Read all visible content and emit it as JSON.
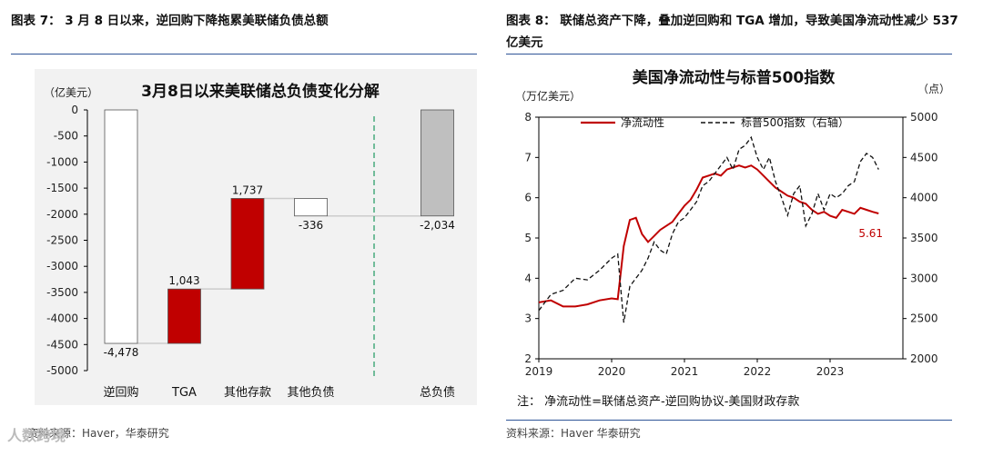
{
  "captions": {
    "left": "图表 7：  3 月 8 日以来，逆回购下降拖累美联储负债总额",
    "right": "图表 8：  联储总资产下降，叠加逆回购和 TGA 增加，导致美国净流动性减少 537 亿美元"
  },
  "sources": {
    "left": "资料来源：Haver，华泰研究",
    "right": "资料来源：Haver 华泰研究"
  },
  "watermark": "人数跨境",
  "colors": {
    "accent_red": "#c00000",
    "gray_bar": "#bfbfbf",
    "dashed_green": "#2e9e6a",
    "rule_blue": "#2f5597"
  },
  "chart_data": [
    {
      "type": "bar",
      "subtype": "waterfall",
      "title": "3月8日以来美联储总负债变化分解",
      "ylabel": "（亿美元）",
      "ylim": [
        -5000,
        0
      ],
      "yticks": [
        0,
        -500,
        -1000,
        -1500,
        -2000,
        -2500,
        -3000,
        -3500,
        -4000,
        -4500,
        -5000
      ],
      "categories": [
        "逆回购",
        "TGA",
        "其他存款",
        "其他负债",
        "总负债"
      ],
      "values": [
        -4478,
        1043,
        1737,
        -336,
        -2034
      ],
      "data_labels": [
        "-4,478",
        "1,043",
        "1,737",
        "-336",
        "-2,034"
      ],
      "bar_fills": [
        "#ffffff",
        "#c00000",
        "#c00000",
        "#ffffff",
        "#bfbfbf"
      ],
      "divider_after_category": "其他负债",
      "grid": false
    },
    {
      "type": "line",
      "title": "美国净流动性与标普500指数",
      "ylabel_left": "（万亿美元）",
      "ylabel_right": "（点）",
      "ylim": [
        2,
        8
      ],
      "ylim_right": [
        2000,
        5000
      ],
      "yticks": [
        2,
        3,
        4,
        5,
        6,
        7,
        8
      ],
      "yticks_right": [
        2000,
        2500,
        3000,
        3500,
        4000,
        4500,
        5000
      ],
      "xlim": [
        "2019-01",
        "2023-12"
      ],
      "xticks": [
        "2019",
        "2020",
        "2021",
        "2022",
        "2023"
      ],
      "legend_position": "top",
      "end_label": "5.61",
      "note": "注：  净流动性=联储总资产-逆回购协议-美国财政存款",
      "series": [
        {
          "name": "净流动性",
          "axis": "left",
          "color": "#c00000",
          "style": "solid",
          "x": [
            "2019-01",
            "2019-03",
            "2019-05",
            "2019-07",
            "2019-09",
            "2019-11",
            "2020-01",
            "2020-02",
            "2020-03",
            "2020-04",
            "2020-05",
            "2020-06",
            "2020-07",
            "2020-08",
            "2020-09",
            "2020-10",
            "2020-11",
            "2020-12",
            "2021-01",
            "2021-02",
            "2021-03",
            "2021-04",
            "2021-05",
            "2021-06",
            "2021-07",
            "2021-08",
            "2021-09",
            "2021-10",
            "2021-11",
            "2021-12",
            "2022-01",
            "2022-02",
            "2022-03",
            "2022-04",
            "2022-05",
            "2022-06",
            "2022-07",
            "2022-08",
            "2022-09",
            "2022-10",
            "2022-11",
            "2022-12",
            "2023-01",
            "2023-02",
            "2023-03",
            "2023-04",
            "2023-05",
            "2023-06",
            "2023-07",
            "2023-08",
            "2023-09"
          ],
          "y": [
            3.4,
            3.45,
            3.3,
            3.3,
            3.35,
            3.45,
            3.5,
            3.48,
            4.8,
            5.45,
            5.5,
            5.1,
            4.9,
            5.05,
            5.2,
            5.3,
            5.4,
            5.6,
            5.8,
            5.95,
            6.2,
            6.5,
            6.55,
            6.6,
            6.55,
            6.7,
            6.75,
            6.8,
            6.75,
            6.8,
            6.7,
            6.55,
            6.4,
            6.25,
            6.15,
            6.05,
            6.0,
            5.9,
            5.85,
            5.7,
            5.6,
            5.65,
            5.55,
            5.5,
            5.7,
            5.65,
            5.6,
            5.75,
            5.7,
            5.65,
            5.61
          ]
        },
        {
          "name": "标普500指数（右轴）",
          "axis": "right",
          "color": "#111111",
          "style": "dashed",
          "x": [
            "2019-01",
            "2019-03",
            "2019-05",
            "2019-07",
            "2019-09",
            "2019-11",
            "2020-01",
            "2020-02",
            "2020-03",
            "2020-04",
            "2020-05",
            "2020-06",
            "2020-07",
            "2020-08",
            "2020-09",
            "2020-10",
            "2020-11",
            "2020-12",
            "2021-01",
            "2021-02",
            "2021-03",
            "2021-04",
            "2021-05",
            "2021-06",
            "2021-07",
            "2021-08",
            "2021-09",
            "2021-10",
            "2021-11",
            "2021-12",
            "2022-01",
            "2022-02",
            "2022-03",
            "2022-04",
            "2022-05",
            "2022-06",
            "2022-07",
            "2022-08",
            "2022-09",
            "2022-10",
            "2022-11",
            "2022-12",
            "2023-01",
            "2023-02",
            "2023-03",
            "2023-04",
            "2023-05",
            "2023-06",
            "2023-07",
            "2023-08",
            "2023-09"
          ],
          "y": [
            2600,
            2800,
            2850,
            3000,
            2980,
            3100,
            3250,
            3300,
            2450,
            2900,
            3000,
            3100,
            3250,
            3450,
            3350,
            3300,
            3550,
            3700,
            3750,
            3850,
            3950,
            4150,
            4200,
            4300,
            4400,
            4500,
            4350,
            4600,
            4650,
            4750,
            4500,
            4350,
            4500,
            4200,
            4000,
            3780,
            4050,
            4150,
            3650,
            3800,
            4050,
            3850,
            4050,
            4000,
            4050,
            4150,
            4200,
            4450,
            4550,
            4500,
            4350
          ]
        }
      ]
    }
  ]
}
